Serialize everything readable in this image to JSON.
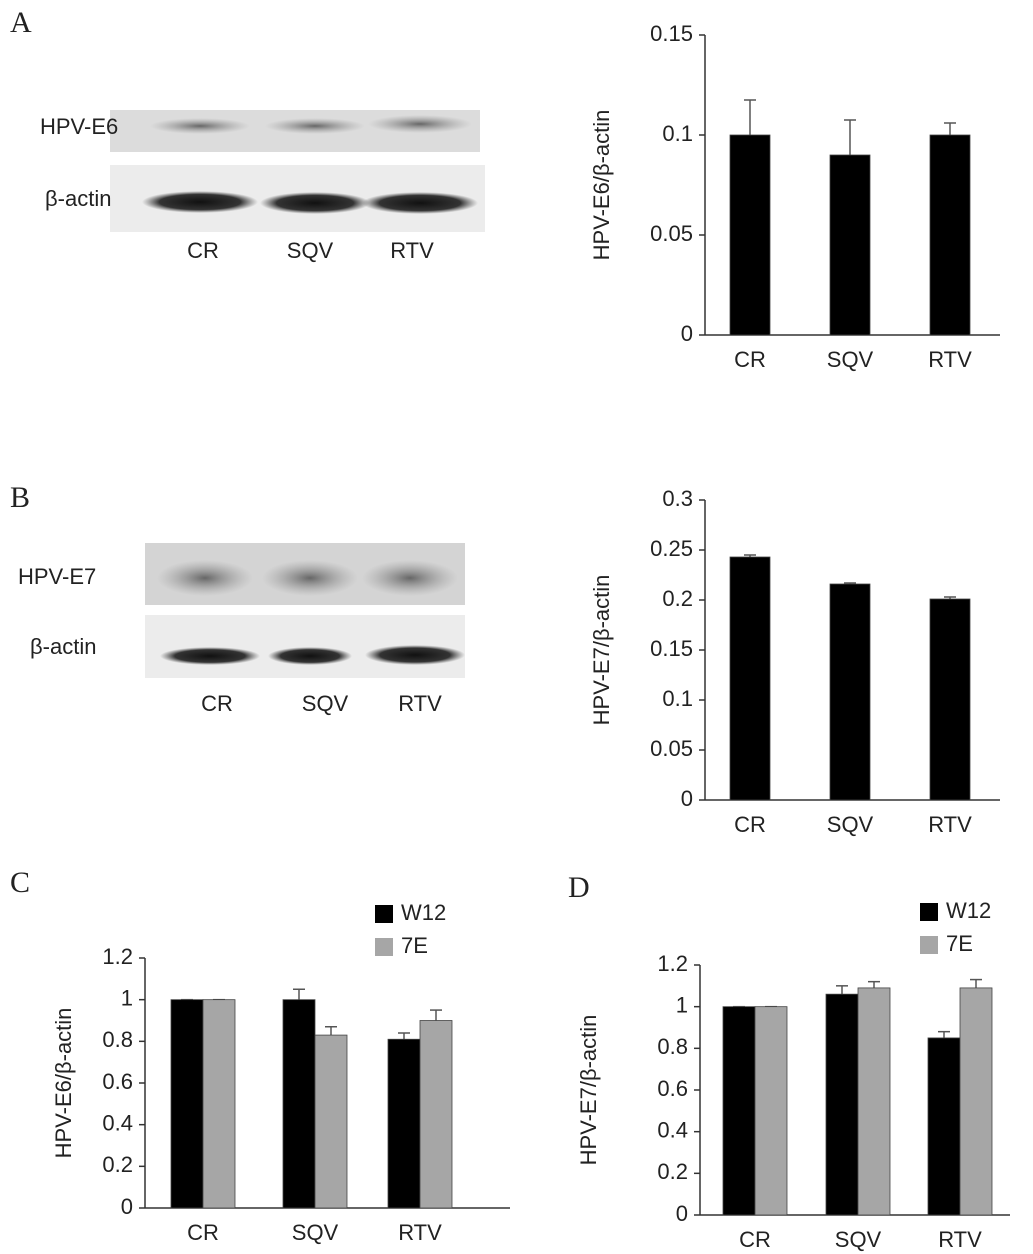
{
  "blots": [
    {
      "panel": "A",
      "rows": [
        "HPV-E6",
        "β-actin"
      ],
      "lanes": [
        "CR",
        "SQV",
        "RTV"
      ]
    },
    {
      "panel": "B",
      "rows": [
        "HPV-E7",
        "β-actin"
      ],
      "lanes": [
        "CR",
        "SQV",
        "RTV"
      ]
    }
  ],
  "chart_data": [
    {
      "type": "bar",
      "y_label": "HPV-E6/β-actin",
      "categories": [
        "CR",
        "SQV",
        "RTV"
      ],
      "values": [
        0.1,
        0.09,
        0.1
      ],
      "errors": [
        0.0175,
        0.0175,
        0.006
      ],
      "color": "#000000",
      "ylim": [
        0,
        0.15
      ],
      "yticks": [
        0,
        0.05,
        0.1,
        0.15
      ]
    },
    {
      "type": "bar",
      "y_label": "HPV-E7/β-actin",
      "categories": [
        "CR",
        "SQV",
        "RTV"
      ],
      "values": [
        0.243,
        0.216,
        0.201
      ],
      "errors": [
        0.002,
        0.001,
        0.002
      ],
      "color": "#000000",
      "ylim": [
        0,
        0.3
      ],
      "yticks": [
        0,
        0.05,
        0.1,
        0.15,
        0.2,
        0.25,
        0.3
      ]
    },
    {
      "type": "bar",
      "panel": "C",
      "y_label": "HPV-E6/β-actin",
      "categories": [
        "CR",
        "SQV",
        "RTV"
      ],
      "series": [
        {
          "name": "W12",
          "color": "#000000",
          "values": [
            1,
            1,
            0.81
          ],
          "errors": [
            0,
            0.05,
            0.03
          ]
        },
        {
          "name": "7E",
          "color": "#a6a6a6",
          "values": [
            1,
            0.83,
            0.9
          ],
          "errors": [
            0,
            0.04,
            0.05
          ]
        }
      ],
      "ylim": [
        0,
        1.2
      ],
      "yticks": [
        0,
        0.2,
        0.4,
        0.6,
        0.8,
        1,
        1.2
      ]
    },
    {
      "type": "bar",
      "panel": "D",
      "y_label": "HPV-E7/β-actin",
      "categories": [
        "CR",
        "SQV",
        "RTV"
      ],
      "series": [
        {
          "name": "W12",
          "color": "#000000",
          "values": [
            1,
            1.06,
            0.85
          ],
          "errors": [
            0,
            0.04,
            0.03
          ]
        },
        {
          "name": "7E",
          "color": "#a6a6a6",
          "values": [
            1,
            1.09,
            1.09
          ],
          "errors": [
            0,
            0.03,
            0.04
          ]
        }
      ],
      "ylim": [
        0,
        1.2
      ],
      "yticks": [
        0,
        0.2,
        0.4,
        0.6,
        0.8,
        1,
        1.2
      ]
    }
  ]
}
